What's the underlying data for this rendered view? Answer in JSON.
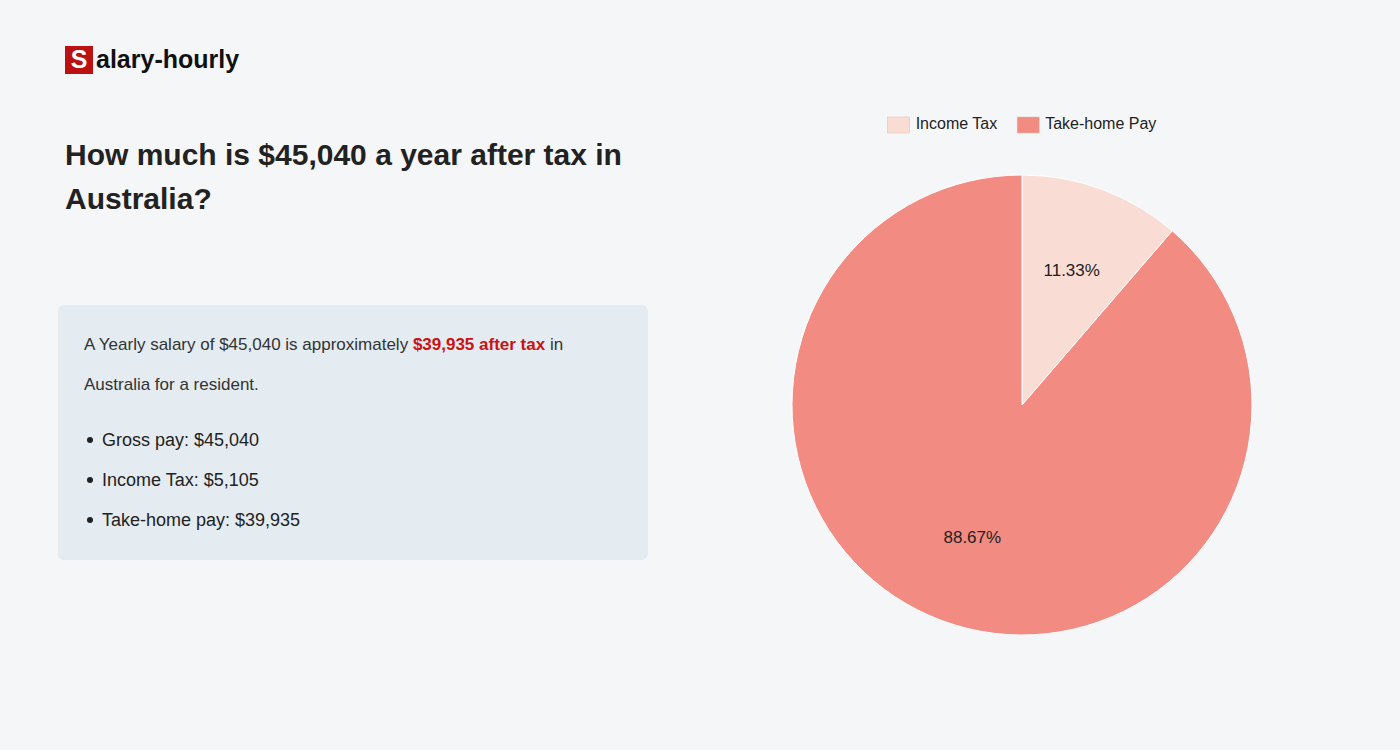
{
  "chart_data": {
    "type": "pie",
    "title": [
      "How much is $45,040 a year after tax in",
      "Australia?"
    ],
    "annotations": [
      "S",
      "alary-hourly",
      "A Yearly salary of $45,040 is approximately ",
      "$39,935 after tax",
      " in",
      "Australia for a resident.",
      "Gross pay: $45,040",
      "Income Tax: $5,105",
      "Take-home pay: $39,935"
    ],
    "categories": [
      "Income Tax",
      "Take-home Pay"
    ],
    "values": [
      11.33,
      88.67
    ],
    "value_labels": [
      "11.33%",
      "88.67%"
    ],
    "colors": [
      "#f9ddd4",
      "#f28b82"
    ],
    "data_labels": true,
    "legend": "top"
  }
}
